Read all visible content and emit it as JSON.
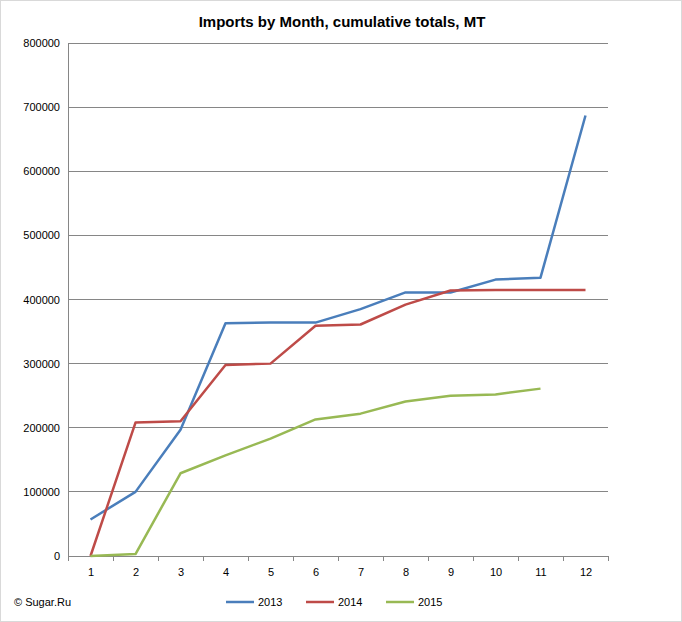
{
  "chart_data": {
    "type": "line",
    "title": "Imports by Month, cumulative totals, MT",
    "annotation": "© Sugar.Ru",
    "categories": [
      "1",
      "2",
      "3",
      "4",
      "5",
      "6",
      "7",
      "8",
      "9",
      "10",
      "11",
      "12"
    ],
    "series": [
      {
        "name": "2013",
        "color": "#4a7ebb",
        "values": [
          57000,
          100000,
          197000,
          363000,
          364000,
          364000,
          385000,
          411000,
          411000,
          431000,
          434000,
          687000
        ]
      },
      {
        "name": "2014",
        "color": "#be4b48",
        "values": [
          0,
          208000,
          210000,
          298000,
          300000,
          359000,
          361000,
          392000,
          414000,
          415000,
          415000,
          415000
        ]
      },
      {
        "name": "2015",
        "color": "#98b954",
        "values": [
          0,
          3000,
          129000,
          157000,
          183000,
          213000,
          222000,
          241000,
          250000,
          252000,
          261000,
          null
        ]
      }
    ],
    "ylim": [
      0,
      800000
    ],
    "yticks": [
      0,
      100000,
      200000,
      300000,
      400000,
      500000,
      600000,
      700000,
      800000
    ],
    "grid": true,
    "legend": "bottom"
  }
}
